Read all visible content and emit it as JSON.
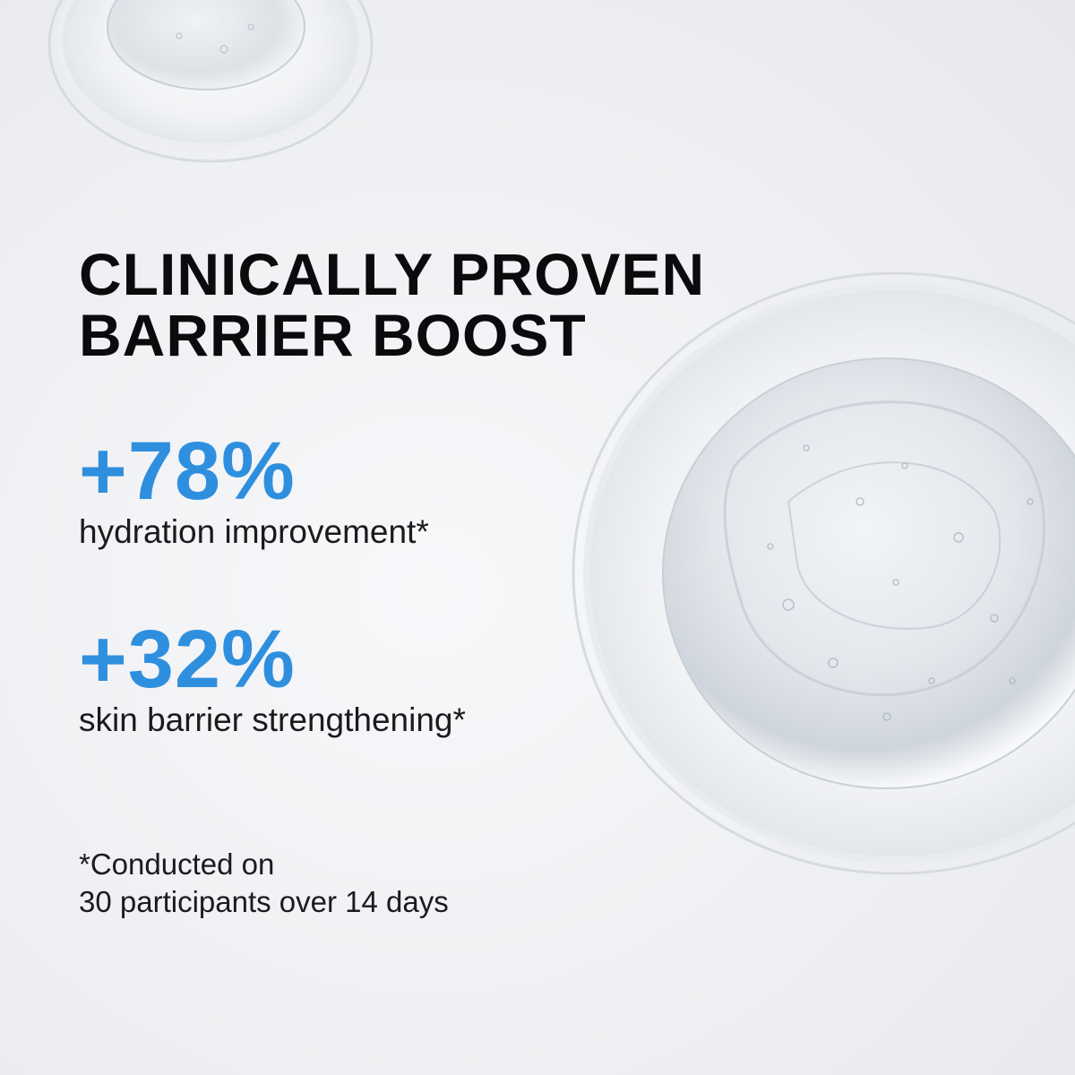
{
  "headline": {
    "line1": "CLINICALLY PROVEN",
    "line2": "BARRIER BOOST"
  },
  "stats": [
    {
      "value": "+78%",
      "label": "hydration improvement*"
    },
    {
      "value": "+32%",
      "label": "skin barrier strengthening*"
    }
  ],
  "footnote": {
    "line1": "*Conducted on",
    "line2": "30 participants over 14 days"
  },
  "colors": {
    "accent": "#2f8fdf",
    "text": "#0b0b0d",
    "background": "#eeeff2"
  }
}
